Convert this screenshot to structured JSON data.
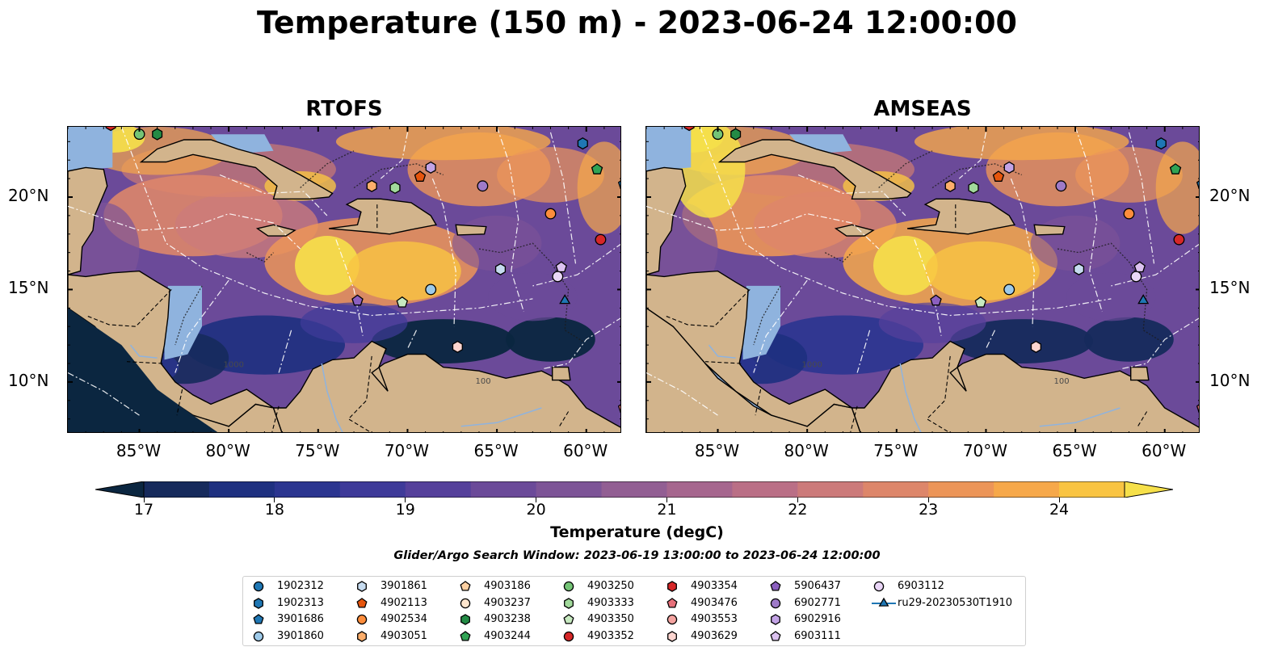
{
  "title": "Temperature (150 m) - 2023-06-24 12:00:00",
  "panels": [
    {
      "title": "RTOFS"
    },
    {
      "title": "AMSEAS"
    }
  ],
  "axes": {
    "lon_ticks": [
      "85°W",
      "80°W",
      "75°W",
      "70°W",
      "65°W",
      "60°W"
    ],
    "lat_ticks": [
      "20°N",
      "15°N",
      "10°N"
    ]
  },
  "colorbar": {
    "title": "Temperature (degC)",
    "ticks": [
      "17",
      "18",
      "19",
      "20",
      "21",
      "22",
      "23",
      "24"
    ],
    "range": [
      17,
      24.5
    ],
    "step": 0.5,
    "extend": "both",
    "colors": [
      "#0b2640",
      "#162a5c",
      "#1e3080",
      "#2b3590",
      "#3e3a99",
      "#55409b",
      "#6b4a99",
      "#7d5497",
      "#925e93",
      "#a6668e",
      "#ba6f86",
      "#cc7a7a",
      "#dd866a",
      "#ec9558",
      "#f6a84a",
      "#f9c442",
      "#f6e04a"
    ]
  },
  "land_color": "#d2b48c",
  "water_color": "#8fb3de",
  "search_window": "Glider/Argo Search Window: 2023-06-19 13:00:00 to 2023-06-24 12:00:00",
  "contour_labels": [
    "100",
    "1000"
  ],
  "legend": [
    {
      "id": "1902312",
      "marker": "circle",
      "color": "#1f77b4"
    },
    {
      "id": "1902313",
      "marker": "hexagon",
      "color": "#1f77b4"
    },
    {
      "id": "3901686",
      "marker": "pentagon",
      "color": "#1f77b4"
    },
    {
      "id": "3901860",
      "marker": "circle",
      "color": "#9ecae9"
    },
    {
      "id": "3901861",
      "marker": "hexagon",
      "color": "#c6dbef"
    },
    {
      "id": "4902113",
      "marker": "pentagon",
      "color": "#e6550d"
    },
    {
      "id": "4902534",
      "marker": "circle",
      "color": "#fd8d3c"
    },
    {
      "id": "4903051",
      "marker": "hexagon",
      "color": "#fdae6b"
    },
    {
      "id": "4903186",
      "marker": "pentagon",
      "color": "#fdd0a2"
    },
    {
      "id": "4903237",
      "marker": "circle",
      "color": "#fee6ce"
    },
    {
      "id": "4903238",
      "marker": "hexagon",
      "color": "#238b45"
    },
    {
      "id": "4903244",
      "marker": "pentagon",
      "color": "#31a354"
    },
    {
      "id": "4903250",
      "marker": "circle",
      "color": "#74c476"
    },
    {
      "id": "4903333",
      "marker": "hexagon",
      "color": "#a1d99b"
    },
    {
      "id": "4903350",
      "marker": "pentagon",
      "color": "#c7e9c0"
    },
    {
      "id": "4903352",
      "marker": "circle",
      "color": "#d62728"
    },
    {
      "id": "4903354",
      "marker": "hexagon",
      "color": "#d62728"
    },
    {
      "id": "4903476",
      "marker": "pentagon",
      "color": "#e7707a"
    },
    {
      "id": "4903553",
      "marker": "circle",
      "color": "#f4a3a0"
    },
    {
      "id": "4903629",
      "marker": "hexagon",
      "color": "#fcd5d0"
    },
    {
      "id": "5906437",
      "marker": "pentagon",
      "color": "#8b5fbf"
    },
    {
      "id": "6902771",
      "marker": "circle",
      "color": "#9e7ac8"
    },
    {
      "id": "6902916",
      "marker": "hexagon",
      "color": "#c3a3e6"
    },
    {
      "id": "6903111",
      "marker": "pentagon",
      "color": "#dcc2f0"
    },
    {
      "id": "6903112",
      "marker": "circle",
      "color": "#ead6f7"
    },
    {
      "id": "ru29-20230530T1910",
      "marker": "triangle-line",
      "color": "#1f77b4"
    }
  ],
  "observations": [
    {
      "id": "4903250",
      "lon": -85.0,
      "lat": 23.4
    },
    {
      "id": "4903238",
      "lon": -84.0,
      "lat": 23.4
    },
    {
      "id": "1902313",
      "lon": -60.2,
      "lat": 22.9
    },
    {
      "id": "4903244",
      "lon": -59.4,
      "lat": 21.5
    },
    {
      "id": "3901686",
      "lon": -57.9,
      "lat": 20.7
    },
    {
      "id": "6902916",
      "lon": -68.7,
      "lat": 21.6
    },
    {
      "id": "4902113",
      "lon": -69.3,
      "lat": 21.1
    },
    {
      "id": "4903051",
      "lon": -72.0,
      "lat": 20.6
    },
    {
      "id": "4903333",
      "lon": -70.7,
      "lat": 20.5
    },
    {
      "id": "6902771",
      "lon": -65.8,
      "lat": 20.6
    },
    {
      "id": "4902534",
      "lon": -62.0,
      "lat": 19.1
    },
    {
      "id": "4903352",
      "lon": -59.2,
      "lat": 17.7
    },
    {
      "id": "3901861",
      "lon": -64.8,
      "lat": 16.1
    },
    {
      "id": "6903111",
      "lon": -61.4,
      "lat": 16.2
    },
    {
      "id": "6903112",
      "lon": -61.6,
      "lat": 15.7
    },
    {
      "id": "3901860",
      "lon": -68.7,
      "lat": 15.0
    },
    {
      "id": "5906437",
      "lon": -72.8,
      "lat": 14.4
    },
    {
      "id": "4903350",
      "lon": -70.3,
      "lat": 14.3
    },
    {
      "id": "ru29-20230530T1910",
      "lon": -61.2,
      "lat": 14.4
    },
    {
      "id": "4903629",
      "lon": -67.2,
      "lat": 11.9
    },
    {
      "id": "4903476",
      "lon": -57.9,
      "lat": 8.6
    },
    {
      "id": "4903354",
      "lon": -86.6,
      "lat": 23.9
    }
  ]
}
